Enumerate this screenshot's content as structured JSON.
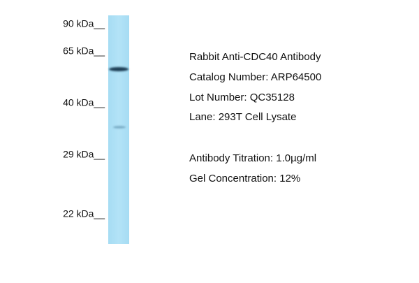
{
  "markers": [
    "90 kDa__",
    "65 kDa__",
    "40 kDa__",
    "29 kDa__",
    "22 kDa__"
  ],
  "info": {
    "title": "Rabbit Anti-CDC40 Antibody",
    "catalog": "Catalog Number: ARP64500",
    "lot": "Lot Number: QC35128",
    "lane": "Lane: 293T Cell Lysate",
    "titration": "Antibody Titration: 1.0µg/ml",
    "gel": "Gel Concentration: 12%"
  }
}
